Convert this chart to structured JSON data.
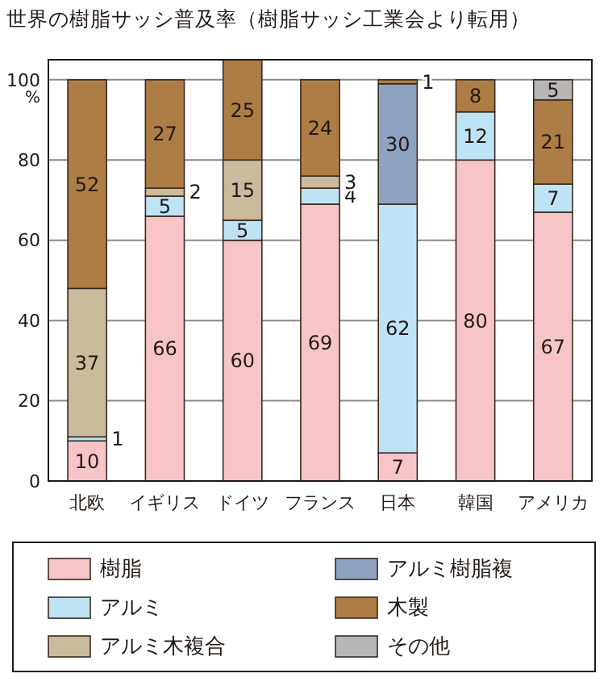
{
  "chart_data": {
    "type": "bar",
    "stacked": true,
    "title": "世界の樹脂サッシ普及率（樹脂サッシ工業会より転用）",
    "ylabel": "%",
    "categories": [
      "北欧",
      "イギリス",
      "ドイツ",
      "フランス",
      "日本",
      "韓国",
      "アメリカ"
    ],
    "ylim": [
      0,
      105
    ],
    "yticks": [
      0,
      20,
      40,
      60,
      80,
      100
    ],
    "grid": "y",
    "legend": "bottom",
    "series": [
      {
        "name": "樹脂",
        "color": "#f7c4c8",
        "values": [
          10,
          66,
          60,
          69,
          7,
          80,
          67
        ],
        "value_labels": [
          "10",
          "66",
          "60",
          "69",
          "7",
          "80",
          "67"
        ]
      },
      {
        "name": "アルミ",
        "color": "#bde3f5",
        "values": [
          1,
          5,
          5,
          4,
          62,
          12,
          7
        ],
        "value_labels": [
          "1",
          "5",
          "5",
          "4",
          "62",
          "12",
          "7"
        ]
      },
      {
        "name": "アルミ木複合",
        "color": "#c9bb9b",
        "values": [
          37,
          2,
          15,
          3,
          null,
          null,
          null
        ],
        "value_labels": [
          "37",
          "2",
          "15",
          "3",
          null,
          null,
          null
        ]
      },
      {
        "name": "アルミ樹脂複",
        "color": "#8ea2c2",
        "values": [
          null,
          null,
          null,
          null,
          30,
          null,
          null
        ],
        "value_labels": [
          null,
          null,
          null,
          null,
          "30",
          null,
          null
        ]
      },
      {
        "name": "木製",
        "color": "#ad7d45",
        "values": [
          52,
          27,
          25,
          24,
          1,
          8,
          21
        ],
        "value_labels": [
          "52",
          "27",
          "25",
          "24",
          "1",
          "8",
          "21"
        ]
      },
      {
        "name": "その他",
        "color": "#b7b7b7",
        "values": [
          null,
          null,
          null,
          null,
          null,
          null,
          5
        ],
        "value_labels": [
          null,
          null,
          null,
          null,
          null,
          null,
          "5"
        ]
      }
    ]
  }
}
